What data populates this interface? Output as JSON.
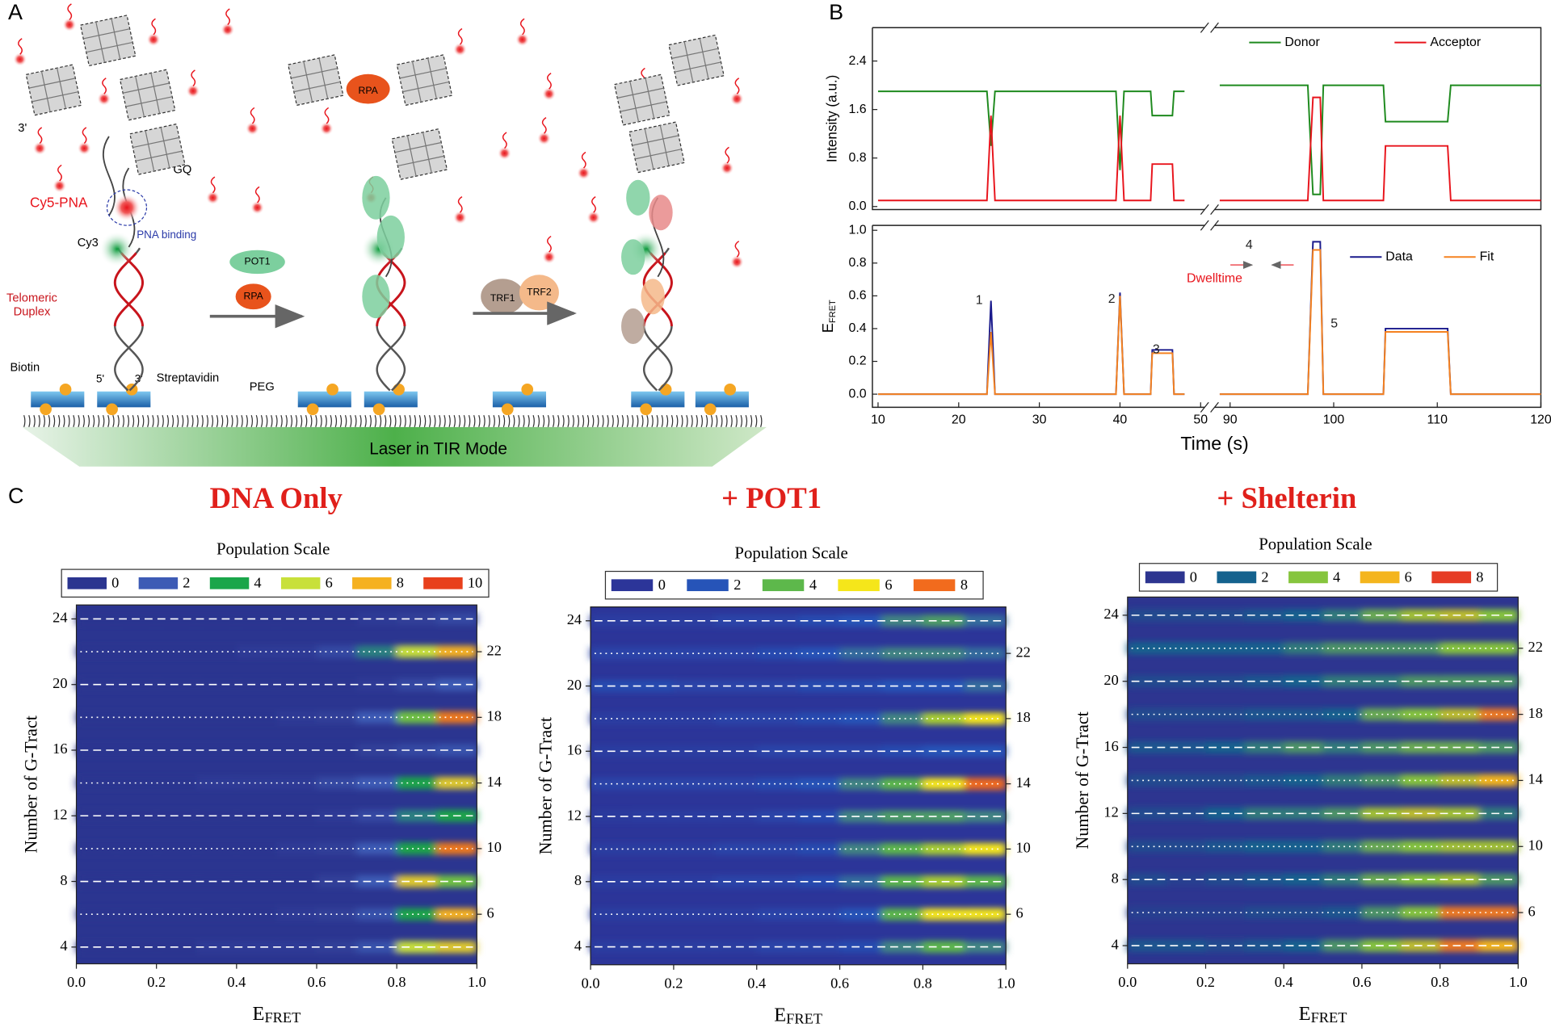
{
  "panels": {
    "a": "A",
    "b": "B",
    "c": "C"
  },
  "diagram": {
    "three_prime_top": "3'",
    "gq": "GQ",
    "cy5_pna": "Cy5-PNA",
    "pna_binding": "PNA binding",
    "cy3": "Cy3",
    "telomeric": "Telomeric",
    "duplex": "Duplex",
    "biotin": "Biotin",
    "five_prime": "5'",
    "three_prime": "3'",
    "streptavidin": "Streptavidin",
    "peg": "PEG",
    "pot1": "POT1",
    "rpa": "RPA",
    "rpa_bound": "RPA",
    "trf1": "TRF1",
    "trf2": "TRF2",
    "laser": "Laser in TIR Mode"
  },
  "chart_data": [
    {
      "type": "line",
      "ylabel": "Intensity (a.u.)",
      "xlim": [
        9.3,
        120
      ],
      "xbreak": [
        50.5,
        88.5
      ],
      "ylim": [
        -0.05,
        2.95
      ],
      "yticks": [
        {
          "value": 0,
          "label": "0.0"
        },
        0.8,
        1.6,
        2.4
      ],
      "x": [
        10,
        23.5,
        24,
        24.5,
        39.5,
        40,
        40.5,
        43.8,
        44,
        46.5,
        46.7,
        48,
        70,
        89,
        97.5,
        98,
        98.7,
        99,
        104.8,
        105,
        111,
        111.3,
        120
      ],
      "series": [
        {
          "name": "Donor",
          "color": "#1e8a1e",
          "values": [
            1.9,
            1.9,
            1.0,
            1.9,
            1.9,
            0.6,
            1.9,
            1.9,
            1.5,
            1.5,
            1.9,
            1.9,
            null,
            2.0,
            2.0,
            0.2,
            0.2,
            2.0,
            2.0,
            1.4,
            1.4,
            2.0,
            2.0
          ]
        },
        {
          "name": "Acceptor",
          "color": "#e8141c",
          "values": [
            0.1,
            0.1,
            1.5,
            0.1,
            0.1,
            1.5,
            0.1,
            0.1,
            0.7,
            0.7,
            0.1,
            0.1,
            null,
            0.1,
            0.1,
            1.8,
            1.8,
            0.1,
            0.1,
            1.0,
            1.0,
            0.1,
            0.1
          ]
        }
      ]
    },
    {
      "type": "line",
      "ylabel": "E",
      "ylabel_sub": "FRET",
      "xlabel": "Time (s)",
      "xlim": [
        9.3,
        120
      ],
      "xbreak": [
        50.5,
        88.5
      ],
      "ylim": [
        -0.08,
        1.03
      ],
      "yticks": [
        {
          "value": 0,
          "label": "0.0"
        },
        0.2,
        0.4,
        0.6,
        0.8,
        {
          "value": 1,
          "label": "1.0"
        }
      ],
      "xticks": [
        10,
        20,
        30,
        40,
        50,
        90,
        100,
        110,
        120
      ],
      "x": [
        10,
        23.5,
        24,
        24.5,
        39.5,
        40,
        40.5,
        43.8,
        44,
        46.5,
        46.7,
        48,
        70,
        89,
        97.5,
        98,
        98.7,
        99,
        104.8,
        105,
        111,
        111.3,
        120
      ],
      "series": [
        {
          "name": "Data",
          "color": "#1a1a8c",
          "values": [
            0,
            0,
            0.57,
            0,
            0,
            0.62,
            0,
            0,
            0.27,
            0.27,
            0,
            0,
            null,
            0,
            0,
            0.93,
            0.93,
            0,
            0,
            0.4,
            0.4,
            0,
            0
          ]
        },
        {
          "name": "Fit",
          "color": "#f58220",
          "values": [
            0,
            0,
            0.38,
            0,
            0,
            0.6,
            0,
            0,
            0.25,
            0.25,
            0,
            0,
            null,
            0,
            0,
            0.88,
            0.88,
            0,
            0,
            0.38,
            0.38,
            0,
            0
          ]
        }
      ],
      "annotations": [
        "1",
        "2",
        "3",
        "4",
        "5",
        "Dwelltime"
      ]
    },
    {
      "type": "heatmap",
      "title": "DNA Only",
      "legend_title": "Population Scale",
      "xlabel": "E",
      "xlabel_sub": "FRET",
      "ylabel": "Number of G-Tract",
      "xlim": [
        0,
        1
      ],
      "xticks": [
        {
          "value": 0,
          "label": "0.0"
        },
        0.2,
        0.4,
        0.6,
        0.8,
        {
          "value": 1,
          "label": "1.0"
        }
      ],
      "ylim": [
        2.98,
        24.85
      ],
      "yticks": [
        4,
        8,
        12,
        16,
        20,
        24
      ],
      "y2lim": [
        2.98,
        24.85
      ],
      "y2ticks": [
        6,
        10,
        14,
        18,
        22
      ],
      "bins": [
        0,
        0.1,
        0.2,
        0.3,
        0.4,
        0.5,
        0.6,
        0.7,
        0.8,
        0.9,
        1.0
      ],
      "rows": [
        4,
        6,
        8,
        10,
        12,
        14,
        16,
        18,
        20,
        22,
        24
      ],
      "scale": [
        0,
        2,
        4,
        6,
        8,
        10
      ],
      "scale_colors": [
        "#2b3590",
        "#3d5bb5",
        "#1aa64a",
        "#c8e03a",
        "#f5b120",
        "#e8401c"
      ],
      "z": [
        [
          0,
          0,
          0,
          0.3,
          0.3,
          0.3,
          0.5,
          1.5,
          6,
          7
        ],
        [
          0,
          0,
          0,
          0,
          0,
          0.3,
          0.5,
          1.5,
          4,
          8
        ],
        [
          0,
          0,
          0,
          0,
          0,
          0,
          0.5,
          2,
          7,
          5
        ],
        [
          0,
          0,
          0,
          0,
          0,
          0.3,
          0.5,
          2,
          4,
          9
        ],
        [
          0,
          0,
          0,
          0,
          0,
          0,
          0.3,
          1,
          3,
          4
        ],
        [
          0,
          0,
          0,
          0.3,
          0.3,
          0.3,
          1,
          2,
          4,
          7
        ],
        [
          0,
          0,
          0,
          0,
          0,
          0,
          0,
          0.5,
          1,
          1.5
        ],
        [
          0,
          0,
          0,
          0,
          0,
          0.3,
          0.5,
          2,
          5,
          9
        ],
        [
          0,
          0,
          0,
          0,
          0,
          0,
          0,
          0.3,
          1,
          2
        ],
        [
          0,
          0,
          0,
          0,
          0.3,
          0.3,
          1,
          3,
          6,
          8
        ],
        [
          0,
          0,
          0,
          0,
          0,
          0,
          0,
          0.3,
          0.5,
          1
        ]
      ]
    },
    {
      "type": "heatmap",
      "title": "+ POT1",
      "legend_title": "Population Scale",
      "xlabel": "E",
      "xlabel_sub": "FRET",
      "ylabel": "Number of G-Tract",
      "xlim": [
        0,
        1
      ],
      "xticks": [
        {
          "value": 0,
          "label": "0.0"
        },
        0.2,
        0.4,
        0.6,
        0.8,
        {
          "value": 1,
          "label": "1.0"
        }
      ],
      "ylim": [
        2.9,
        24.85
      ],
      "yticks": [
        4,
        8,
        12,
        16,
        20,
        24
      ],
      "y2lim": [
        2.9,
        24.85
      ],
      "y2ticks": [
        6,
        10,
        14,
        18,
        22
      ],
      "bins": [
        0,
        0.1,
        0.2,
        0.3,
        0.4,
        0.5,
        0.6,
        0.7,
        0.8,
        0.9,
        1.0
      ],
      "rows": [
        4,
        6,
        8,
        10,
        12,
        14,
        16,
        18,
        20,
        22,
        24
      ],
      "scale": [
        0,
        2,
        4,
        6,
        8
      ],
      "scale_colors": [
        "#2c3599",
        "#2654b8",
        "#5db84b",
        "#f5e61a",
        "#f26b1d"
      ],
      "z": [
        [
          0.5,
          0.5,
          0.5,
          0.5,
          1,
          1,
          1.5,
          3,
          4,
          3
        ],
        [
          0.5,
          0.5,
          0.5,
          0.5,
          1,
          1,
          2,
          4,
          6,
          6
        ],
        [
          0.5,
          0.5,
          0.5,
          1,
          1,
          1.5,
          2.5,
          4,
          5,
          4
        ],
        [
          0.5,
          0.5,
          0.5,
          1,
          1,
          1.5,
          3,
          4,
          5,
          6
        ],
        [
          0.3,
          0.5,
          0.5,
          0.5,
          1,
          1.5,
          3,
          3.5,
          3.5,
          3
        ],
        [
          1,
          1,
          1,
          1,
          1.5,
          2,
          3,
          4,
          6,
          8
        ],
        [
          0.5,
          0.5,
          0.5,
          0.5,
          1,
          1,
          1,
          1.5,
          2,
          2
        ],
        [
          0.5,
          0.5,
          0.5,
          1,
          1,
          1.5,
          2,
          3,
          5,
          6
        ],
        [
          1.5,
          1.5,
          1,
          1,
          1,
          1.5,
          1.5,
          2,
          2,
          2.5
        ],
        [
          1,
          1,
          1,
          1,
          1.5,
          2,
          2.5,
          3,
          3,
          2.5
        ],
        [
          0.5,
          0.5,
          0.5,
          1,
          1,
          1.5,
          2,
          3,
          3.5,
          2.5
        ]
      ]
    },
    {
      "type": "heatmap",
      "title": "+ Shelterin",
      "legend_title": "Population Scale",
      "xlabel": "E",
      "xlabel_sub": "FRET",
      "ylabel": "Number of G-Tract",
      "xlim": [
        0,
        1
      ],
      "xticks": [
        {
          "value": 0,
          "label": "0.0"
        },
        0.2,
        0.4,
        0.6,
        0.8,
        {
          "value": 1,
          "label": "1.0"
        }
      ],
      "ylim": [
        2.9,
        25.1
      ],
      "yticks": [
        4,
        8,
        12,
        16,
        20,
        24
      ],
      "y2lim": [
        2.9,
        25.1
      ],
      "y2ticks": [
        6,
        10,
        14,
        18,
        22
      ],
      "bins": [
        0,
        0.1,
        0.2,
        0.3,
        0.4,
        0.5,
        0.6,
        0.7,
        0.8,
        0.9,
        1.0
      ],
      "rows": [
        4,
        6,
        8,
        10,
        12,
        14,
        16,
        18,
        20,
        22,
        24
      ],
      "scale": [
        0,
        2,
        4,
        6,
        8
      ],
      "scale_colors": [
        "#2d3590",
        "#14628e",
        "#86c53e",
        "#f4b51d",
        "#e63c25"
      ],
      "z": [
        [
          1.5,
          1.5,
          1,
          1.5,
          2,
          3,
          4,
          5,
          7,
          6
        ],
        [
          0.5,
          0.5,
          0.5,
          1,
          1,
          1.5,
          3,
          4,
          7,
          7
        ],
        [
          1,
          0.5,
          1,
          1.5,
          2,
          2.5,
          3.5,
          4,
          4.5,
          3
        ],
        [
          1,
          1,
          1.5,
          2,
          2,
          2.5,
          3.5,
          4,
          4.5,
          4.5
        ],
        [
          1,
          1,
          2,
          2.5,
          2.5,
          3,
          4.5,
          5,
          4.5,
          2.5
        ],
        [
          1,
          1,
          1,
          1.5,
          2,
          2.5,
          3,
          4,
          5,
          6
        ],
        [
          1.5,
          1.5,
          2,
          2.5,
          3,
          2.5,
          3,
          3.5,
          3.5,
          3
        ],
        [
          1,
          1,
          1,
          1.5,
          1.5,
          2,
          3.5,
          4,
          5,
          7
        ],
        [
          1,
          1,
          1,
          1.5,
          2,
          2.5,
          2.5,
          3,
          3,
          3
        ],
        [
          2,
          2,
          2,
          2,
          2.5,
          3,
          3,
          3,
          4,
          4
        ],
        [
          1,
          1,
          1,
          1.5,
          2,
          2.5,
          3.5,
          4.5,
          5,
          4
        ]
      ]
    }
  ]
}
